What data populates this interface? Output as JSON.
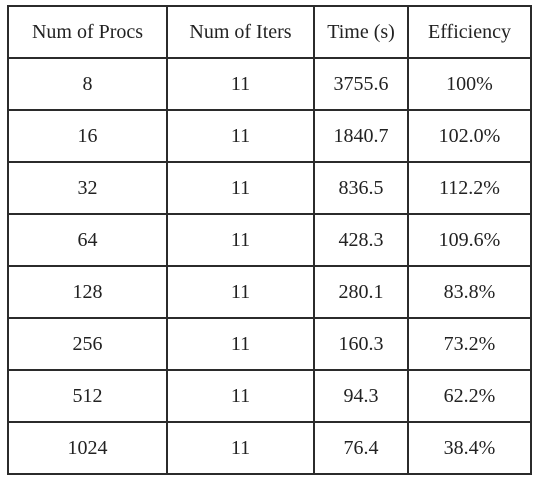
{
  "table": {
    "headers": [
      "Num of Procs",
      "Num of Iters",
      "Time (s)",
      "Efficiency"
    ],
    "rows": [
      [
        "8",
        "11",
        "3755.6",
        "100%"
      ],
      [
        "16",
        "11",
        "1840.7",
        "102.0%"
      ],
      [
        "32",
        "11",
        "836.5",
        "112.2%"
      ],
      [
        "64",
        "11",
        "428.3",
        "109.6%"
      ],
      [
        "128",
        "11",
        "280.1",
        "83.8%"
      ],
      [
        "256",
        "11",
        "160.3",
        "73.2%"
      ],
      [
        "512",
        "11",
        "94.3",
        "62.2%"
      ],
      [
        "1024",
        "11",
        "76.4",
        "38.4%"
      ]
    ]
  }
}
